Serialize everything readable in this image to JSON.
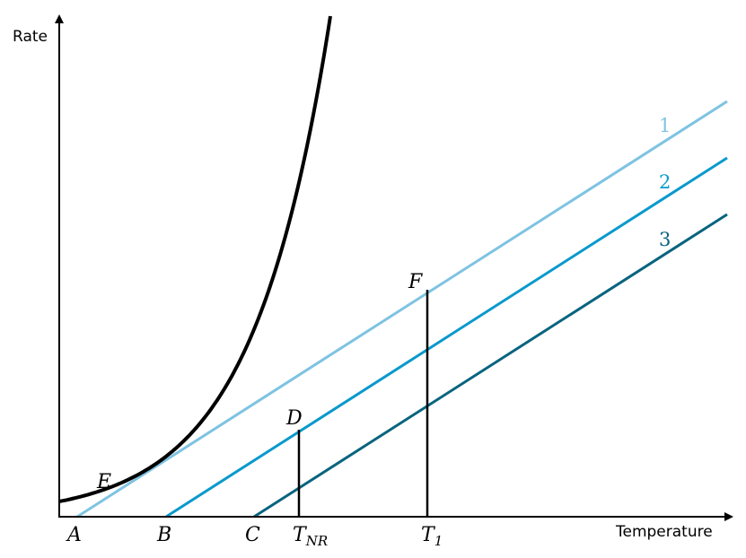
{
  "axes": {
    "y_label": "Rate",
    "x_label": "Temperature"
  },
  "colors": {
    "curve": "#000000",
    "line_1": "#7ec3e2",
    "line_2": "#0a99cc",
    "line_3": "#09647f",
    "axis": "#000000"
  },
  "x_ticks": {
    "A": "A",
    "B": "B",
    "C": "C",
    "T_NR": {
      "main": "T",
      "sub": "NR"
    },
    "T_1": {
      "main": "T",
      "sub": "1"
    }
  },
  "points": {
    "E": "E",
    "D": "D",
    "F": "F"
  },
  "lines": [
    {
      "label": "1"
    },
    {
      "label": "2"
    },
    {
      "label": "3"
    }
  ]
}
